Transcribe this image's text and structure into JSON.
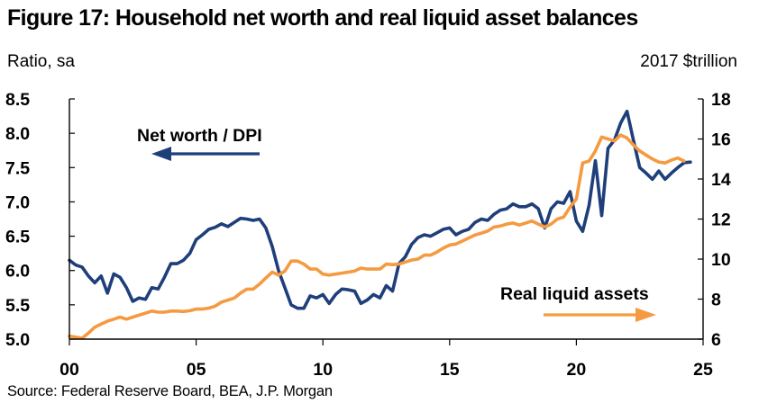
{
  "figure": {
    "title": "Figure 17: Household net worth and real liquid asset balances",
    "left_unit": "Ratio, sa",
    "right_unit": "2017 $trillion",
    "source": "Source: Federal Reserve Board, BEA, J.P. Morgan"
  },
  "chart_data": {
    "type": "line",
    "x_tick_labels": [
      "00",
      "05",
      "10",
      "15",
      "20",
      "25"
    ],
    "x_ticks": [
      2000,
      2005,
      2010,
      2015,
      2020,
      2025
    ],
    "xlim": [
      2000,
      2025
    ],
    "left_axis": {
      "ylim": [
        5.0,
        8.5
      ],
      "ticks": [
        "5.0",
        "5.5",
        "6.0",
        "6.5",
        "7.0",
        "7.5",
        "8.0",
        "8.5"
      ]
    },
    "right_axis": {
      "ylim": [
        6,
        18
      ],
      "ticks": [
        "6",
        "8",
        "10",
        "12",
        "14",
        "16",
        "18"
      ]
    },
    "series": [
      {
        "name": "Net worth / DPI",
        "axis": "left",
        "color": "#1f3f7a",
        "points": [
          [
            2000.0,
            6.15
          ],
          [
            2000.25,
            6.08
          ],
          [
            2000.5,
            6.05
          ],
          [
            2000.75,
            5.92
          ],
          [
            2001.0,
            5.82
          ],
          [
            2001.25,
            5.92
          ],
          [
            2001.5,
            5.67
          ],
          [
            2001.75,
            5.95
          ],
          [
            2002.0,
            5.9
          ],
          [
            2002.25,
            5.75
          ],
          [
            2002.5,
            5.55
          ],
          [
            2002.75,
            5.6
          ],
          [
            2003.0,
            5.58
          ],
          [
            2003.25,
            5.75
          ],
          [
            2003.5,
            5.73
          ],
          [
            2003.75,
            5.9
          ],
          [
            2004.0,
            6.1
          ],
          [
            2004.25,
            6.1
          ],
          [
            2004.5,
            6.15
          ],
          [
            2004.75,
            6.25
          ],
          [
            2005.0,
            6.45
          ],
          [
            2005.25,
            6.52
          ],
          [
            2005.5,
            6.6
          ],
          [
            2005.75,
            6.63
          ],
          [
            2006.0,
            6.68
          ],
          [
            2006.25,
            6.64
          ],
          [
            2006.5,
            6.7
          ],
          [
            2006.75,
            6.76
          ],
          [
            2007.0,
            6.75
          ],
          [
            2007.25,
            6.73
          ],
          [
            2007.5,
            6.75
          ],
          [
            2007.75,
            6.62
          ],
          [
            2008.0,
            6.35
          ],
          [
            2008.25,
            6.0
          ],
          [
            2008.5,
            5.75
          ],
          [
            2008.75,
            5.5
          ],
          [
            2009.0,
            5.45
          ],
          [
            2009.25,
            5.45
          ],
          [
            2009.5,
            5.63
          ],
          [
            2009.75,
            5.6
          ],
          [
            2010.0,
            5.65
          ],
          [
            2010.25,
            5.52
          ],
          [
            2010.5,
            5.65
          ],
          [
            2010.75,
            5.73
          ],
          [
            2011.0,
            5.72
          ],
          [
            2011.25,
            5.7
          ],
          [
            2011.5,
            5.52
          ],
          [
            2011.75,
            5.57
          ],
          [
            2012.0,
            5.65
          ],
          [
            2012.25,
            5.6
          ],
          [
            2012.5,
            5.78
          ],
          [
            2012.75,
            5.7
          ],
          [
            2013.0,
            6.1
          ],
          [
            2013.25,
            6.2
          ],
          [
            2013.5,
            6.38
          ],
          [
            2013.75,
            6.48
          ],
          [
            2014.0,
            6.52
          ],
          [
            2014.25,
            6.5
          ],
          [
            2014.5,
            6.55
          ],
          [
            2014.75,
            6.6
          ],
          [
            2015.0,
            6.62
          ],
          [
            2015.25,
            6.52
          ],
          [
            2015.5,
            6.57
          ],
          [
            2015.75,
            6.6
          ],
          [
            2016.0,
            6.7
          ],
          [
            2016.25,
            6.75
          ],
          [
            2016.5,
            6.73
          ],
          [
            2016.75,
            6.82
          ],
          [
            2017.0,
            6.88
          ],
          [
            2017.25,
            6.9
          ],
          [
            2017.5,
            6.97
          ],
          [
            2017.75,
            6.93
          ],
          [
            2018.0,
            6.93
          ],
          [
            2018.25,
            6.97
          ],
          [
            2018.5,
            6.9
          ],
          [
            2018.75,
            6.62
          ],
          [
            2019.0,
            6.9
          ],
          [
            2019.25,
            7.0
          ],
          [
            2019.5,
            6.98
          ],
          [
            2019.75,
            7.15
          ],
          [
            2020.0,
            6.72
          ],
          [
            2020.25,
            6.57
          ],
          [
            2020.5,
            6.95
          ],
          [
            2020.75,
            7.6
          ],
          [
            2021.0,
            6.8
          ],
          [
            2021.25,
            7.78
          ],
          [
            2021.5,
            7.9
          ],
          [
            2021.75,
            8.15
          ],
          [
            2022.0,
            8.32
          ],
          [
            2022.25,
            7.9
          ],
          [
            2022.5,
            7.5
          ],
          [
            2022.75,
            7.42
          ],
          [
            2023.0,
            7.33
          ],
          [
            2023.25,
            7.45
          ],
          [
            2023.5,
            7.33
          ],
          [
            2023.75,
            7.42
          ],
          [
            2024.0,
            7.5
          ],
          [
            2024.25,
            7.57
          ],
          [
            2024.5,
            7.58
          ]
        ]
      },
      {
        "name": "Real liquid assets",
        "axis": "right",
        "color": "#f59a40",
        "points": [
          [
            2000.0,
            6.15
          ],
          [
            2000.25,
            6.1
          ],
          [
            2000.5,
            6.05
          ],
          [
            2000.75,
            6.3
          ],
          [
            2001.0,
            6.6
          ],
          [
            2001.25,
            6.75
          ],
          [
            2001.5,
            6.9
          ],
          [
            2001.75,
            7.0
          ],
          [
            2002.0,
            7.1
          ],
          [
            2002.25,
            7.0
          ],
          [
            2002.5,
            7.1
          ],
          [
            2002.75,
            7.2
          ],
          [
            2003.0,
            7.3
          ],
          [
            2003.25,
            7.4
          ],
          [
            2003.5,
            7.35
          ],
          [
            2003.75,
            7.35
          ],
          [
            2004.0,
            7.4
          ],
          [
            2004.25,
            7.4
          ],
          [
            2004.5,
            7.38
          ],
          [
            2004.75,
            7.42
          ],
          [
            2005.0,
            7.5
          ],
          [
            2005.25,
            7.5
          ],
          [
            2005.5,
            7.55
          ],
          [
            2005.75,
            7.65
          ],
          [
            2006.0,
            7.85
          ],
          [
            2006.25,
            7.95
          ],
          [
            2006.5,
            8.05
          ],
          [
            2006.75,
            8.3
          ],
          [
            2007.0,
            8.5
          ],
          [
            2007.25,
            8.5
          ],
          [
            2007.5,
            8.75
          ],
          [
            2007.75,
            9.05
          ],
          [
            2008.0,
            9.35
          ],
          [
            2008.25,
            9.2
          ],
          [
            2008.5,
            9.4
          ],
          [
            2008.75,
            9.9
          ],
          [
            2009.0,
            9.9
          ],
          [
            2009.25,
            9.75
          ],
          [
            2009.5,
            9.5
          ],
          [
            2009.75,
            9.5
          ],
          [
            2010.0,
            9.25
          ],
          [
            2010.25,
            9.2
          ],
          [
            2010.5,
            9.25
          ],
          [
            2010.75,
            9.3
          ],
          [
            2011.0,
            9.35
          ],
          [
            2011.25,
            9.4
          ],
          [
            2011.5,
            9.55
          ],
          [
            2011.75,
            9.5
          ],
          [
            2012.0,
            9.5
          ],
          [
            2012.25,
            9.5
          ],
          [
            2012.5,
            9.75
          ],
          [
            2012.75,
            9.72
          ],
          [
            2013.0,
            9.75
          ],
          [
            2013.25,
            9.85
          ],
          [
            2013.5,
            9.95
          ],
          [
            2013.75,
            10.0
          ],
          [
            2014.0,
            10.2
          ],
          [
            2014.25,
            10.2
          ],
          [
            2014.5,
            10.35
          ],
          [
            2014.75,
            10.55
          ],
          [
            2015.0,
            10.7
          ],
          [
            2015.25,
            10.75
          ],
          [
            2015.5,
            10.9
          ],
          [
            2015.75,
            11.05
          ],
          [
            2016.0,
            11.2
          ],
          [
            2016.25,
            11.3
          ],
          [
            2016.5,
            11.4
          ],
          [
            2016.75,
            11.6
          ],
          [
            2017.0,
            11.65
          ],
          [
            2017.25,
            11.75
          ],
          [
            2017.5,
            11.8
          ],
          [
            2017.75,
            11.7
          ],
          [
            2018.0,
            11.8
          ],
          [
            2018.25,
            11.9
          ],
          [
            2018.5,
            11.75
          ],
          [
            2018.75,
            11.6
          ],
          [
            2019.0,
            11.75
          ],
          [
            2019.25,
            12.0
          ],
          [
            2019.5,
            12.1
          ],
          [
            2019.75,
            12.6
          ],
          [
            2020.0,
            13.0
          ],
          [
            2020.25,
            14.8
          ],
          [
            2020.5,
            14.9
          ],
          [
            2020.75,
            15.4
          ],
          [
            2021.0,
            16.1
          ],
          [
            2021.25,
            16.0
          ],
          [
            2021.5,
            15.9
          ],
          [
            2021.75,
            16.2
          ],
          [
            2022.0,
            16.05
          ],
          [
            2022.25,
            15.7
          ],
          [
            2022.5,
            15.4
          ],
          [
            2022.75,
            15.2
          ],
          [
            2023.0,
            15.0
          ],
          [
            2023.25,
            14.85
          ],
          [
            2023.5,
            14.8
          ],
          [
            2023.75,
            14.95
          ],
          [
            2024.0,
            15.05
          ],
          [
            2024.25,
            14.9
          ]
        ]
      }
    ],
    "annotations": [
      {
        "text": "Net worth / DPI",
        "arrow": "left",
        "series": 0
      },
      {
        "text": "Real liquid assets",
        "arrow": "right",
        "series": 1
      }
    ]
  }
}
